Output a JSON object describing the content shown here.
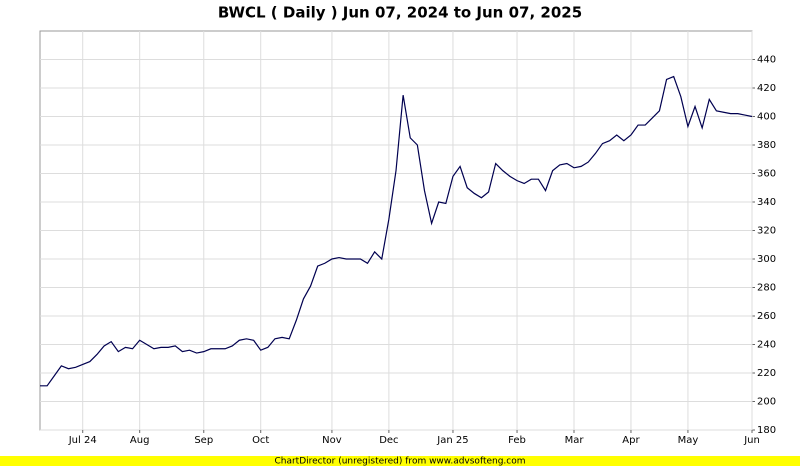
{
  "chart_data": {
    "type": "line",
    "title": "BWCL ( Daily ) Jun 07, 2024 to Jun 07, 2025",
    "footer": "ChartDirector (unregistered) from www.advsofteng.com",
    "categories": [
      null,
      null,
      null,
      null,
      null,
      null,
      "Jul 24",
      null,
      null,
      null,
      null,
      null,
      null,
      null,
      "Aug",
      null,
      null,
      null,
      null,
      null,
      null,
      null,
      null,
      "Sep",
      null,
      null,
      null,
      null,
      null,
      null,
      null,
      "Oct",
      null,
      null,
      null,
      null,
      null,
      null,
      null,
      null,
      null,
      "Nov",
      null,
      null,
      null,
      null,
      null,
      null,
      null,
      "Dec",
      null,
      null,
      null,
      null,
      null,
      null,
      null,
      null,
      "Jan 25",
      null,
      null,
      null,
      null,
      null,
      null,
      null,
      null,
      "Feb",
      null,
      null,
      null,
      null,
      null,
      null,
      null,
      "Mar",
      null,
      null,
      null,
      null,
      null,
      null,
      null,
      "Apr",
      null,
      null,
      null,
      null,
      null,
      null,
      null,
      "May",
      null,
      null,
      null,
      null,
      null,
      null,
      null,
      null,
      "Jun"
    ],
    "series": [
      {
        "name": "BWCL",
        "color": "#000050",
        "values": [
          211,
          211,
          218,
          225,
          223,
          224,
          226,
          228,
          233,
          239,
          242,
          235,
          238,
          237,
          243,
          240,
          237,
          238,
          238,
          239,
          235,
          236,
          234,
          235,
          237,
          237,
          237,
          239,
          243,
          244,
          243,
          236,
          238,
          244,
          245,
          244,
          257,
          272,
          281,
          295,
          297,
          300,
          301,
          300,
          300,
          300,
          297,
          305,
          300,
          328,
          362,
          415,
          385,
          380,
          348,
          325,
          340,
          339,
          358,
          365,
          350,
          346,
          343,
          347,
          367,
          362,
          358,
          355,
          353,
          356,
          356,
          348,
          362,
          366,
          367,
          364,
          365,
          368,
          374,
          381,
          383,
          387,
          383,
          387,
          394,
          394,
          399,
          404,
          426,
          428,
          414,
          393,
          407,
          392,
          412,
          404,
          403,
          402,
          402,
          401,
          400
        ]
      }
    ],
    "ylim": [
      180,
      460
    ],
    "yticks": [
      180,
      200,
      220,
      240,
      260,
      280,
      300,
      320,
      340,
      360,
      380,
      400,
      420,
      440
    ],
    "grid": true
  }
}
